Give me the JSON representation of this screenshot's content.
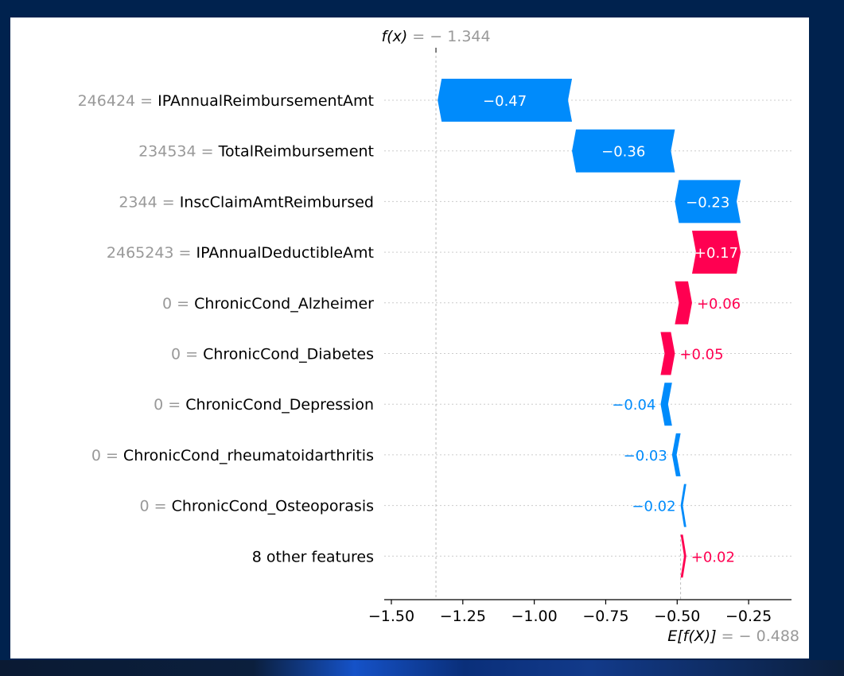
{
  "chart_data": {
    "type": "waterfall",
    "fx": {
      "label": "f(x)",
      "value": "= − 1.344",
      "num": -1.344
    },
    "base": {
      "label": "E[f(X)]",
      "value": "= − 0.488",
      "num": -0.488
    },
    "features": [
      {
        "value": "246424",
        "name": "IPAnnualReimbursementAmt",
        "contribution": -0.47,
        "label": "−0.47"
      },
      {
        "value": "234534",
        "name": "TotalReimbursement",
        "contribution": -0.36,
        "label": "−0.36"
      },
      {
        "value": "2344",
        "name": "InscClaimAmtReimbursed",
        "contribution": -0.23,
        "label": "−0.23"
      },
      {
        "value": "2465243",
        "name": "IPAnnualDeductibleAmt",
        "contribution": 0.17,
        "label": "+0.17"
      },
      {
        "value": "0",
        "name": "ChronicCond_Alzheimer",
        "contribution": 0.06,
        "label": "+0.06"
      },
      {
        "value": "0",
        "name": "ChronicCond_Diabetes",
        "contribution": 0.05,
        "label": "+0.05"
      },
      {
        "value": "0",
        "name": "ChronicCond_Depression",
        "contribution": -0.04,
        "label": "−0.04"
      },
      {
        "value": "0",
        "name": "ChronicCond_rheumatoidarthritis",
        "contribution": -0.03,
        "label": "−0.03"
      },
      {
        "value": "0",
        "name": "ChronicCond_Osteoporasis",
        "contribution": -0.02,
        "label": "−0.02"
      },
      {
        "value": "",
        "name": "8 other features",
        "contribution": 0.02,
        "label": "+0.02"
      }
    ],
    "xticks": [
      -1.5,
      -1.25,
      -1.0,
      -0.75,
      -0.5,
      -0.25
    ],
    "xtick_labels": [
      "−1.50",
      "−1.25",
      "−1.00",
      "−0.75",
      "−0.50",
      "−0.25"
    ],
    "xlim": [
      -1.525,
      -0.1
    ],
    "colors": {
      "negative": "#008bfb",
      "positive": "#ff0051",
      "muted": "#999999",
      "text": "#000000"
    }
  }
}
